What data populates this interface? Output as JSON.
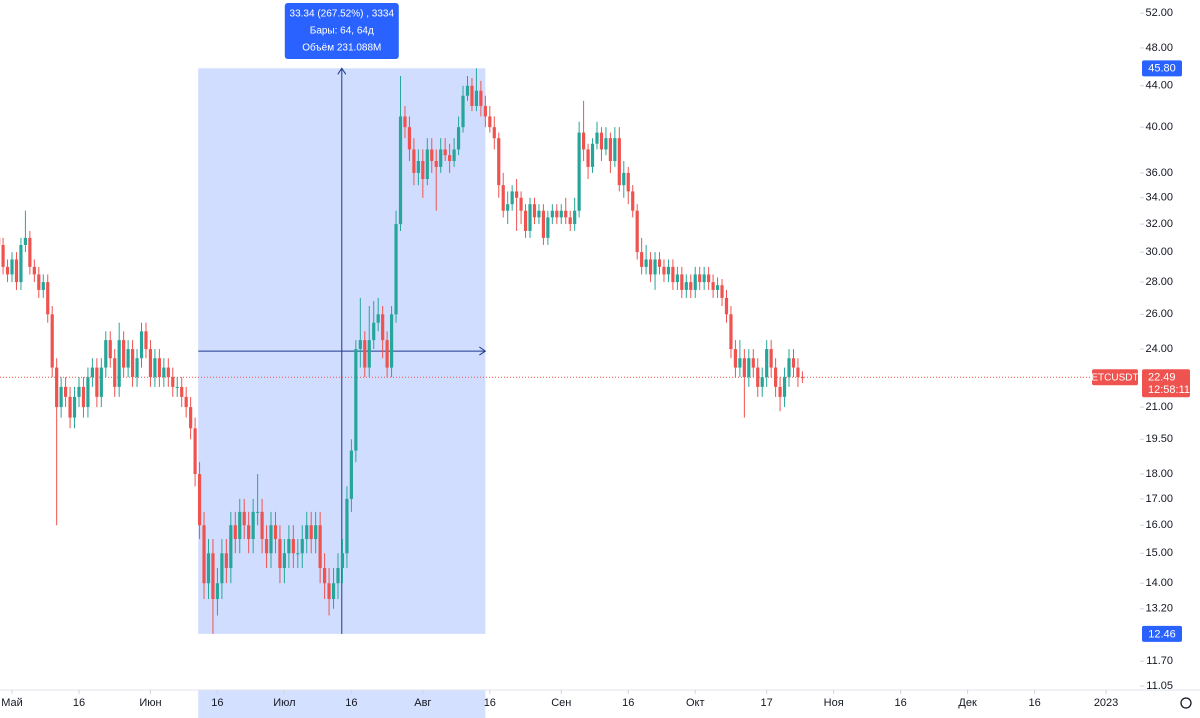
{
  "chart_data": {
    "type": "candlestick",
    "scale": "log",
    "up_color": "#26a69a",
    "down_color": "#ef5350",
    "xlim": [
      0.31,
      255.6
    ],
    "ylim": [
      10.95,
      53.6
    ],
    "xticks": [
      {
        "value": 3,
        "label": "Май"
      },
      {
        "value": 18,
        "label": "16"
      },
      {
        "value": 34,
        "label": "Июн"
      },
      {
        "value": 49,
        "label": "16"
      },
      {
        "value": 64,
        "label": "Июл"
      },
      {
        "value": 79,
        "label": "16"
      },
      {
        "value": 95,
        "label": "Авг"
      },
      {
        "value": 110,
        "label": "16"
      },
      {
        "value": 126,
        "label": "Сен"
      },
      {
        "value": 141,
        "label": "16"
      },
      {
        "value": 156,
        "label": "Окт"
      },
      {
        "value": 172,
        "label": "17"
      },
      {
        "value": 187,
        "label": "Ноя"
      },
      {
        "value": 202,
        "label": "16"
      },
      {
        "value": 217,
        "label": "Дек"
      },
      {
        "value": 232,
        "label": "16"
      },
      {
        "value": 248,
        "label": "2023"
      }
    ],
    "yticks": [
      {
        "value": 52,
        "label": "52.00"
      },
      {
        "value": 48,
        "label": "48.00"
      },
      {
        "value": 44,
        "label": "44.00"
      },
      {
        "value": 40,
        "label": "40.00"
      },
      {
        "value": 36,
        "label": "36.00"
      },
      {
        "value": 34,
        "label": "34.00"
      },
      {
        "value": 32,
        "label": "32.00"
      },
      {
        "value": 30,
        "label": "30.00"
      },
      {
        "value": 28,
        "label": "28.00"
      },
      {
        "value": 26,
        "label": "26.00"
      },
      {
        "value": 24,
        "label": "24.00"
      },
      {
        "value": 21,
        "label": "21.00"
      },
      {
        "value": 19.5,
        "label": "19.50"
      },
      {
        "value": 18,
        "label": "18.00"
      },
      {
        "value": 17,
        "label": "17.00"
      },
      {
        "value": 16,
        "label": "16.00"
      },
      {
        "value": 15,
        "label": "15.00"
      },
      {
        "value": 14,
        "label": "14.00"
      },
      {
        "value": 13.2,
        "label": "13.20"
      },
      {
        "value": 11.7,
        "label": "11.70"
      },
      {
        "value": 11.05,
        "label": "11.05"
      }
    ],
    "open": [
      31,
      30.5,
      29,
      28.5,
      29.5,
      28,
      30.5,
      31,
      29,
      28.5,
      27.5,
      28,
      26,
      23,
      21,
      22,
      21.5,
      20.5,
      21.5,
      22,
      21,
      22.5,
      23,
      21.5,
      23,
      24.5,
      23.5,
      22,
      24.5,
      23,
      24,
      22.5,
      23.5,
      25,
      24,
      22.5,
      23.5,
      22.5,
      23,
      22.5,
      22,
      22,
      21.5,
      21,
      20,
      18,
      16,
      14,
      15,
      13.5,
      14,
      15,
      14.5,
      16,
      15.5,
      16.5,
      16,
      15.5,
      16.5,
      16.5,
      15.5,
      15,
      16,
      15.5,
      14.5,
      15,
      15.5,
      15,
      15,
      15.5,
      16,
      15.5,
      16,
      14.5,
      14,
      13.5,
      14,
      14.5,
      15,
      17,
      19,
      24,
      24.5,
      23,
      24.5,
      25.5,
      26,
      24.5,
      23,
      26,
      32,
      41,
      40,
      38,
      36,
      37,
      35.5,
      38,
      37,
      36.5,
      38,
      37.5,
      37,
      38,
      40,
      43,
      44,
      42,
      43.5,
      42,
      41,
      40,
      39,
      35,
      33,
      33.5,
      34.5,
      34,
      33,
      31.5,
      33.5,
      32.5,
      33,
      31,
      32.5,
      33,
      32.5,
      33,
      32.5,
      32,
      33,
      39.5,
      38,
      36.5,
      38.5,
      39.5,
      38,
      39,
      37,
      39,
      35,
      36,
      34.5,
      33,
      30,
      29,
      29.5,
      28.5,
      29.5,
      29,
      28.5,
      29,
      28,
      28.5,
      27.5,
      28,
      27.5,
      28.5,
      28,
      28.5,
      28,
      27.5,
      27.8,
      27,
      26,
      24,
      23,
      23.5,
      22.5,
      23.5,
      23,
      22,
      22.5,
      24,
      23,
      22,
      21.5,
      22.5,
      23.5,
      23,
      22.5
    ],
    "high": [
      31.5,
      31,
      29.5,
      30,
      30,
      31,
      33,
      31.5,
      29.5,
      29,
      28.5,
      28.5,
      26.5,
      23.5,
      22.5,
      22.5,
      22,
      22,
      22.5,
      22.5,
      23,
      23.5,
      23.5,
      23.5,
      25,
      25,
      24,
      25.5,
      25,
      24.5,
      24.5,
      24,
      25.5,
      25.5,
      24.5,
      24,
      24,
      23.5,
      23.5,
      23,
      22.5,
      22.5,
      22,
      21.5,
      20.5,
      18.5,
      16.5,
      15.5,
      15.5,
      14.5,
      15.5,
      15.5,
      16.5,
      16.5,
      17,
      17,
      16.5,
      17,
      18,
      17,
      16,
      16.5,
      16.5,
      16,
      15.5,
      16,
      16,
      15.5,
      16,
      16.5,
      16.5,
      16.5,
      16.5,
      15,
      14.5,
      14.5,
      15,
      15.5,
      17.5,
      19.5,
      24.5,
      27,
      25,
      26.5,
      26.8,
      27,
      26.5,
      25,
      26.5,
      33,
      45,
      42,
      41,
      39,
      38,
      38,
      39,
      39,
      38,
      39,
      39,
      38.5,
      39,
      41,
      44,
      45,
      44.8,
      45.8,
      44.5,
      43,
      42,
      41,
      39.5,
      36,
      34.5,
      35,
      35.5,
      34.5,
      33.5,
      34,
      34,
      33.5,
      33.5,
      33,
      33.5,
      33.5,
      33.5,
      34,
      33,
      34,
      40.5,
      42.5,
      38.5,
      39,
      40.5,
      40,
      40,
      39.5,
      40,
      40,
      37,
      36.5,
      35,
      33.5,
      31,
      30.5,
      30,
      30,
      30,
      29.5,
      29.5,
      29.5,
      29,
      29,
      28.5,
      28.5,
      29,
      29,
      29,
      29,
      28.5,
      28.3,
      28.2,
      27.5,
      26.5,
      24.5,
      24.5,
      24,
      24,
      24,
      23.5,
      23,
      24.5,
      24.5,
      23.5,
      22.5,
      23,
      24,
      24,
      23.5,
      22.8
    ],
    "low": [
      30,
      28.5,
      28,
      28,
      27.5,
      27.5,
      30,
      28.5,
      28,
      27,
      27,
      25.5,
      22.5,
      16,
      20.5,
      21,
      20,
      20,
      21,
      20.5,
      20.5,
      22,
      21,
      21,
      22.5,
      23,
      21.5,
      21.5,
      22.5,
      22.5,
      22,
      22,
      23,
      23.5,
      22,
      22,
      22,
      22,
      22,
      21.5,
      21.5,
      21,
      20.5,
      19.5,
      17.5,
      15.5,
      13.5,
      13.5,
      12.46,
      13,
      13.5,
      14,
      14,
      15,
      15,
      15.5,
      15,
      15,
      16,
      15,
      14.5,
      14.5,
      15,
      14,
      14,
      14.5,
      14.5,
      14.5,
      14.5,
      15,
      15,
      15,
      14,
      13.5,
      13,
      13.2,
      13.5,
      14,
      14.5,
      16.5,
      18.5,
      23,
      22.5,
      22.5,
      24,
      25,
      23.5,
      22.5,
      22.5,
      25.5,
      31.5,
      39,
      37,
      35,
      35,
      34,
      35,
      36,
      33,
      36,
      37,
      36,
      36.5,
      37.5,
      39.5,
      42.5,
      41.5,
      41.5,
      41,
      40,
      39.5,
      38,
      34,
      32.5,
      32,
      33,
      31.5,
      32,
      31,
      31,
      32,
      32,
      30.5,
      30.5,
      32,
      32,
      32,
      32,
      31.5,
      31.5,
      32.5,
      37,
      35.5,
      36,
      38,
      37,
      37.5,
      36,
      36.5,
      34.5,
      34,
      33.5,
      32.5,
      29.5,
      28.5,
      28.5,
      28,
      27.5,
      28.5,
      28,
      28,
      27.5,
      27.5,
      27,
      27,
      27,
      27,
      27.5,
      27.5,
      27.5,
      27,
      27,
      26.5,
      25.5,
      23.5,
      22.5,
      22.5,
      20.5,
      22,
      22.5,
      21.5,
      21.5,
      22,
      22.5,
      21.5,
      20.8,
      21,
      22,
      22.5,
      22,
      22.2
    ],
    "close": [
      30.5,
      29,
      28.5,
      29.5,
      28,
      30.5,
      31,
      29,
      28.5,
      27.5,
      28,
      26,
      23,
      21,
      22,
      21.5,
      20.5,
      21.5,
      22,
      21,
      22.5,
      23,
      21.5,
      23,
      24.5,
      23.5,
      22,
      24.5,
      23,
      24,
      22.5,
      23.5,
      25,
      24,
      22.5,
      23.5,
      22.5,
      23,
      22.5,
      22,
      22,
      21.5,
      21,
      20,
      18,
      16,
      14,
      15,
      13.5,
      14,
      15,
      14.5,
      16,
      15.5,
      16.5,
      16,
      15.5,
      16.5,
      16.5,
      15.5,
      15,
      16,
      15.5,
      14.5,
      15,
      15.5,
      15,
      15,
      15.5,
      16,
      15.5,
      16,
      14.5,
      14,
      13.5,
      14,
      14.5,
      15,
      17,
      19,
      24,
      24.5,
      23,
      24.5,
      25.5,
      26,
      24.5,
      23,
      26,
      32,
      41,
      40,
      38,
      36,
      37,
      35.5,
      38,
      37,
      36.5,
      38,
      37.5,
      37,
      38,
      40,
      43,
      44,
      42,
      43.5,
      42,
      41,
      40,
      39,
      35,
      33,
      33.5,
      34.5,
      34,
      33,
      31.5,
      33.5,
      32.5,
      33,
      31,
      32.5,
      33,
      32.5,
      33,
      32.5,
      32,
      33,
      39.5,
      38,
      36.5,
      38.5,
      39.5,
      38,
      39,
      37,
      39,
      35,
      36,
      34.5,
      33,
      30,
      29,
      29.5,
      28.5,
      29.5,
      29,
      28.5,
      29,
      28,
      28.5,
      27.5,
      28,
      27.5,
      28.5,
      28,
      28.5,
      28,
      27.5,
      27.8,
      27,
      26,
      24,
      23,
      23.5,
      22.5,
      23.5,
      23,
      22,
      22.5,
      24,
      23,
      22,
      21.5,
      22.5,
      23.5,
      23,
      22.5,
      22.49
    ],
    "measure": {
      "x": [
        44.7,
        109
      ],
      "low": {
        "value": 12.46,
        "label": "12.46"
      },
      "high": {
        "value": 45.8,
        "label": "45.80"
      },
      "color": "#2962ff",
      "lines": [
        "33.34 (267.52%) , 3334",
        "Бары: 64, 64д",
        "Объём 231.088M"
      ]
    },
    "current_price": {
      "symbol": "ETCUSDT",
      "value": 22.49,
      "label": "22.49",
      "countdown": "12:58:11",
      "color": "#ef5350"
    }
  }
}
